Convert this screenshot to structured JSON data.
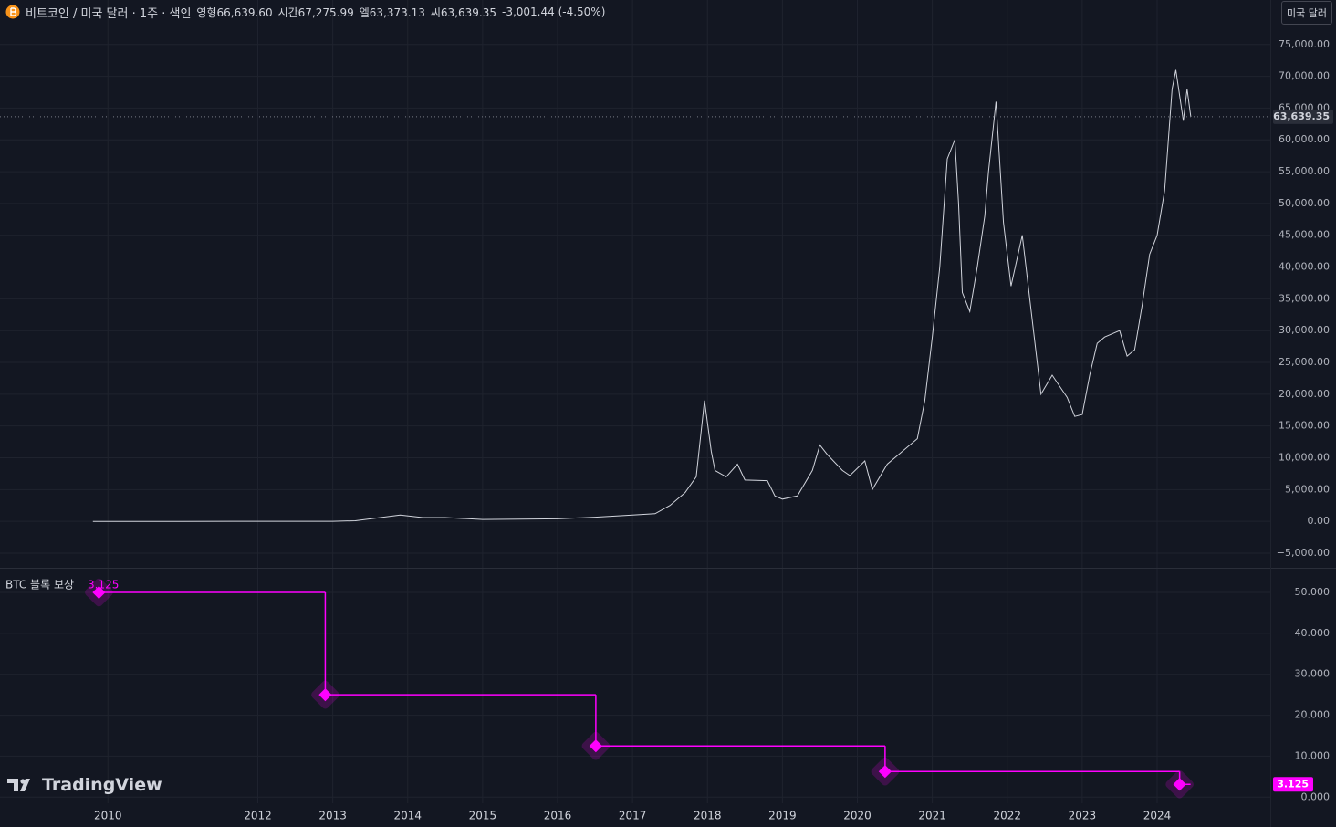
{
  "header": {
    "symbol": "비트코인 / 미국 달러 · 1주 · 색인",
    "ohlc": [
      {
        "label": "영형",
        "value": "66,639.60"
      },
      {
        "label": "시간",
        "value": "67,275.99"
      },
      {
        "label": "엘",
        "value": "63,373.13"
      },
      {
        "label": "씨",
        "value": "63,639.35"
      }
    ],
    "change": "-3,001.44 (-4.50%)",
    "currency_button": "미국 달러"
  },
  "watermark": "TradingView",
  "chart_data": [
    {
      "type": "line",
      "color": "#d1d4dc",
      "x": [
        2009.8,
        2011.0,
        2012.0,
        2013.0,
        2013.3,
        2013.9,
        2014.2,
        2014.5,
        2015.0,
        2016.0,
        2016.5,
        2017.0,
        2017.3,
        2017.5,
        2017.7,
        2017.85,
        2017.96,
        2018.05,
        2018.1,
        2018.25,
        2018.4,
        2018.5,
        2018.8,
        2018.9,
        2019.0,
        2019.2,
        2019.4,
        2019.5,
        2019.6,
        2019.8,
        2019.9,
        2020.1,
        2020.2,
        2020.4,
        2020.6,
        2020.8,
        2020.9,
        2021.0,
        2021.1,
        2021.2,
        2021.3,
        2021.35,
        2021.4,
        2021.5,
        2021.6,
        2021.7,
        2021.75,
        2021.85,
        2021.95,
        2022.05,
        2022.2,
        2022.35,
        2022.45,
        2022.6,
        2022.8,
        2022.9,
        2023.0,
        2023.1,
        2023.2,
        2023.3,
        2023.5,
        2023.6,
        2023.7,
        2023.8,
        2023.9,
        2024.0,
        2024.1,
        2024.2,
        2024.25,
        2024.35,
        2024.4,
        2024.45
      ],
      "values": [
        0,
        0,
        5,
        13,
        100,
        1000,
        600,
        600,
        300,
        400,
        650,
        1000,
        1200,
        2500,
        4500,
        7000,
        19000,
        11000,
        8000,
        7000,
        9000,
        6500,
        6400,
        4000,
        3500,
        4000,
        8000,
        12000,
        10500,
        8000,
        7200,
        9500,
        5000,
        9000,
        11000,
        13000,
        19000,
        29000,
        40000,
        57000,
        60000,
        50000,
        36000,
        33000,
        40000,
        48000,
        55000,
        66000,
        47000,
        37000,
        45000,
        30000,
        20000,
        23000,
        19500,
        16500,
        16800,
        23000,
        28000,
        29000,
        30000,
        26000,
        27000,
        34000,
        42000,
        45000,
        52000,
        68000,
        71000,
        63000,
        68000,
        63639.35
      ],
      "last_price": {
        "value": 63639.35,
        "label": "63,639.35"
      },
      "xlim": [
        2008.56,
        2025.51
      ],
      "ylim": [
        -7300,
        82000
      ],
      "yticks": [
        {
          "value": -5000,
          "label": "−5,000.00"
        },
        {
          "value": 0,
          "label": "0.00"
        },
        {
          "value": 5000,
          "label": "5,000.00"
        },
        {
          "value": 10000,
          "label": "10,000.00"
        },
        {
          "value": 15000,
          "label": "15,000.00"
        },
        {
          "value": 20000,
          "label": "20,000.00"
        },
        {
          "value": 25000,
          "label": "25,000.00"
        },
        {
          "value": 30000,
          "label": "30,000.00"
        },
        {
          "value": 35000,
          "label": "35,000.00"
        },
        {
          "value": 40000,
          "label": "40,000.00"
        },
        {
          "value": 45000,
          "label": "45,000.00"
        },
        {
          "value": 50000,
          "label": "50,000.00"
        },
        {
          "value": 55000,
          "label": "55,000.00"
        },
        {
          "value": 60000,
          "label": "60,000.00"
        },
        {
          "value": 65000,
          "label": "65,000.00"
        },
        {
          "value": 70000,
          "label": "70,000.00"
        },
        {
          "value": 75000,
          "label": "75,000.00"
        }
      ],
      "grid": true
    },
    {
      "type": "step",
      "title": "BTC 블록 보상",
      "color": "#ff00ff",
      "x": [
        2009.88,
        2012.9,
        2016.51,
        2020.37,
        2024.3
      ],
      "values": [
        50,
        25,
        12.5,
        6.25,
        3.125
      ],
      "xlim": [
        2008.56,
        2025.51
      ],
      "ylim": [
        -1.5,
        55.8
      ],
      "yticks": [
        {
          "value": 0,
          "label": "0.000"
        },
        {
          "value": 10,
          "label": "10.000"
        },
        {
          "value": 20,
          "label": "20.000"
        },
        {
          "value": 30,
          "label": "30.000"
        },
        {
          "value": 40,
          "label": "40.000"
        },
        {
          "value": 50,
          "label": "50.000"
        }
      ],
      "xticks": [
        2010,
        2012,
        2013,
        2014,
        2015,
        2016,
        2017,
        2018,
        2019,
        2020,
        2021,
        2022,
        2023,
        2024
      ],
      "grid": true
    }
  ]
}
